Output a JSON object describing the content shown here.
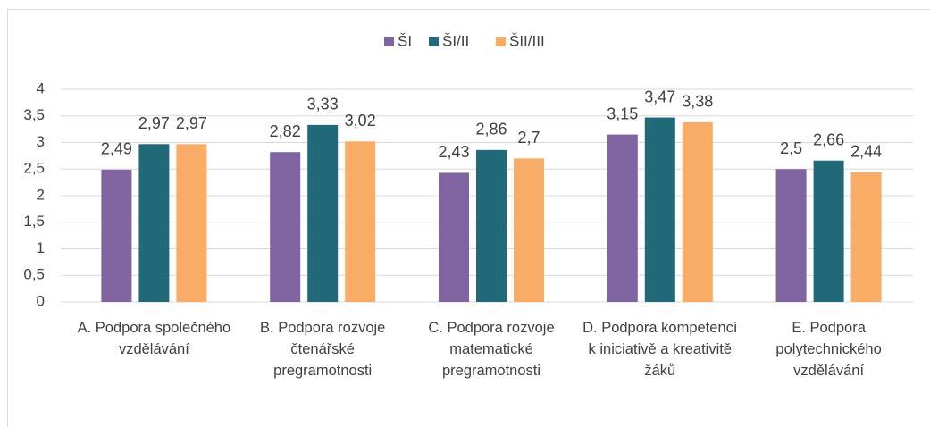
{
  "chart_data": {
    "type": "bar",
    "categories": [
      "A. Podpora společného vzdělávání",
      "B. Podpora rozvoje čtenářské pregramotnosti",
      "C. Podpora rozvoje matematické pregramotnosti",
      "D. Podpora kompetencí k iniciativě a kreativitě žáků",
      "E. Podpora polytechnického vzdělávání"
    ],
    "series": [
      {
        "name": "ŠI",
        "color": "#8064a2",
        "values": [
          2.49,
          2.82,
          2.43,
          3.15,
          2.5
        ],
        "value_labels": [
          "2,49",
          "2,82",
          "2,43",
          "3,15",
          "2,5"
        ]
      },
      {
        "name": "ŠI/II",
        "color": "#216a7a",
        "values": [
          2.97,
          3.33,
          2.86,
          3.47,
          2.66
        ],
        "value_labels": [
          "2,97",
          "3,33",
          "2,86",
          "3,47",
          "2,66"
        ]
      },
      {
        "name": "ŠII/III",
        "color": "#f9ac66",
        "values": [
          2.97,
          3.02,
          2.7,
          3.38,
          2.44
        ],
        "value_labels": [
          "2,97",
          "3,02",
          "2,7",
          "3,38",
          "2,44"
        ]
      }
    ],
    "ylim": [
      0,
      4
    ],
    "yticks": [
      0,
      {
        "value": 0.5,
        "label": "0,5"
      },
      1,
      {
        "value": 1.5,
        "label": "1,5"
      },
      2,
      {
        "value": 2.5,
        "label": "2,5"
      },
      3,
      {
        "value": 3.5,
        "label": "3,5"
      },
      4
    ],
    "grid": true,
    "legend": "top"
  }
}
